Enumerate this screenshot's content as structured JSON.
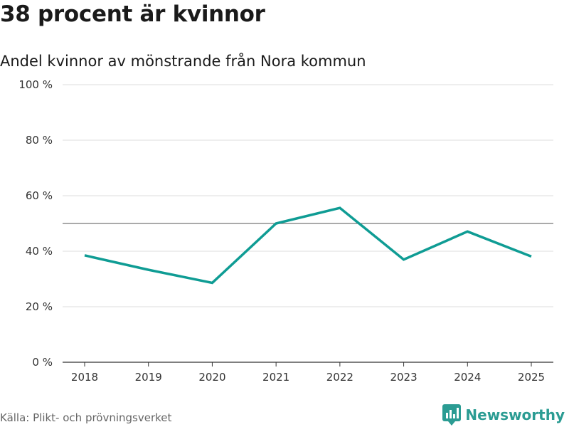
{
  "header": {
    "title": "38 procent är kvinnor",
    "subtitle": "Andel kvinnor av mönstrande från Nora kommun"
  },
  "chart_data": {
    "type": "line",
    "title": "38 procent är kvinnor",
    "subtitle": "Andel kvinnor av mönstrande från Nora kommun",
    "xlabel": "",
    "ylabel": "",
    "categories": [
      "2018",
      "2019",
      "2020",
      "2021",
      "2022",
      "2023",
      "2024",
      "2025"
    ],
    "series": [
      {
        "name": "Andel kvinnor",
        "values": [
          38.5,
          33.3,
          28.6,
          50.0,
          55.6,
          37.0,
          47.1,
          38.1
        ]
      }
    ],
    "ylim": [
      0,
      100
    ],
    "yticks": [
      0,
      20,
      40,
      60,
      80,
      100
    ],
    "ytick_labels": [
      "0 %",
      "20 %",
      "40 %",
      "60 %",
      "80 %",
      "100 %"
    ],
    "reference_line": 50,
    "grid": true,
    "colors": {
      "line": "#0f9c94",
      "grid": "#dddddd",
      "reference": "#777777",
      "axis": "#333333"
    }
  },
  "footer": {
    "source": "Källa: Plikt- och prövningsverket",
    "brand": "Newsworthy",
    "brand_icon": "newsworthy-logo-icon"
  }
}
